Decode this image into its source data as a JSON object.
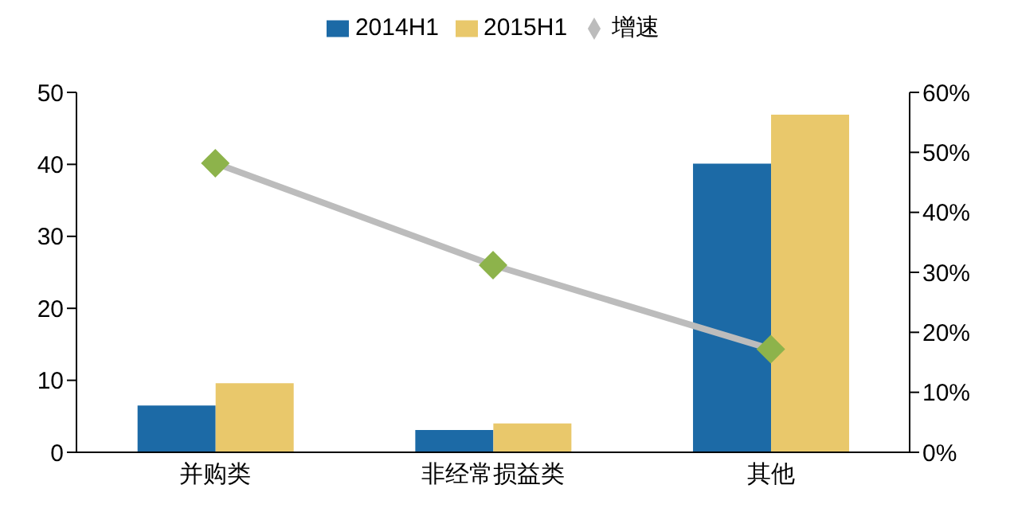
{
  "chart_data": {
    "type": "bar",
    "categories": [
      "并购类",
      "非经常损益类",
      "其他"
    ],
    "series": [
      {
        "name": "2014H1",
        "color": "#1c6aa6",
        "values": [
          6.5,
          3.1,
          40.1
        ]
      },
      {
        "name": "2015H1",
        "color": "#e9c86b",
        "values": [
          9.6,
          4.0,
          46.9
        ]
      },
      {
        "name": "增速",
        "type": "line",
        "axis": "y2",
        "color": "#bcbcbc",
        "values": [
          48.2,
          31.2,
          17.2
        ]
      }
    ],
    "ylim": [
      0,
      50
    ],
    "yticks": [
      0,
      10,
      20,
      30,
      40,
      50
    ],
    "y2lim": [
      0,
      60
    ],
    "y2ticks": [
      {
        "value": 0,
        "label": "0%"
      },
      {
        "value": 10,
        "label": "10%"
      },
      {
        "value": 20,
        "label": "20%"
      },
      {
        "value": 30,
        "label": "30%"
      },
      {
        "value": 40,
        "label": "40%"
      },
      {
        "value": 50,
        "label": "50%"
      },
      {
        "value": 60,
        "label": "60%"
      }
    ],
    "marker": "diamond",
    "legend": "top"
  }
}
